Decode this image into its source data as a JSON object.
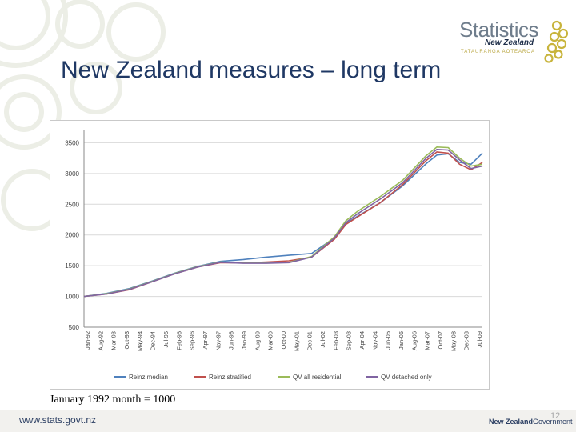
{
  "slide": {
    "title": "New Zealand measures – long term",
    "bullet_mark": "."
  },
  "logo": {
    "name": "Statistics",
    "sub": "New Zealand",
    "maori": "TATAURANGA AOTEAROA"
  },
  "footer": {
    "url": "www.stats.govt.nz",
    "gov_part1": "New Zealand",
    "gov_part2": "Government",
    "page": "12"
  },
  "note": "January 1992 month = 1000",
  "colors": {
    "title": "#1f3864",
    "series": [
      "#4f81bd",
      "#c0504d",
      "#9bbb59",
      "#8064a2"
    ]
  },
  "chart_data": {
    "type": "line",
    "title": "",
    "ylim": [
      500,
      3700
    ],
    "yticks": [
      500,
      1000,
      1500,
      2000,
      2500,
      3000,
      3500
    ],
    "ytick_labels": [
      "500",
      "1000",
      "1500",
      "2000",
      "2500",
      "3000",
      "3500"
    ],
    "x_range": [
      "1992-01",
      "2009-07"
    ],
    "xtick_labels": [
      "Jan-92",
      "Aug-92",
      "Mar-93",
      "Oct-93",
      "May-94",
      "Dec-94",
      "Jul-95",
      "Feb-96",
      "Sep-96",
      "Apr-97",
      "Nov-97",
      "Jun-98",
      "Jan-99",
      "Aug-99",
      "Mar-00",
      "Oct-00",
      "May-01",
      "Dec-01",
      "Jul-02",
      "Feb-03",
      "Sep-03",
      "Apr-04",
      "Nov-04",
      "Jun-05",
      "Jan-06",
      "Aug-06",
      "Mar-07",
      "Oct-07",
      "May-08",
      "Dec-08",
      "Jul-09"
    ],
    "grid": true,
    "legend_position": "bottom",
    "series": [
      {
        "name": "Reinz median",
        "x": [
          "1992-01",
          "1993-01",
          "1994-01",
          "1995-01",
          "1996-01",
          "1997-01",
          "1998-01",
          "1999-01",
          "2000-01",
          "2001-01",
          "2002-01",
          "2003-01",
          "2003-07",
          "2004-01",
          "2005-01",
          "2006-01",
          "2007-01",
          "2007-07",
          "2008-01",
          "2008-07",
          "2009-01",
          "2009-07"
        ],
        "y": [
          1000,
          1050,
          1130,
          1250,
          1380,
          1490,
          1570,
          1600,
          1640,
          1670,
          1700,
          1950,
          2180,
          2300,
          2520,
          2800,
          3150,
          3300,
          3320,
          3180,
          3150,
          3330
        ]
      },
      {
        "name": "Reinz stratified",
        "x": [
          "1992-01",
          "1993-01",
          "1994-01",
          "1995-01",
          "1996-01",
          "1997-01",
          "1998-01",
          "1999-01",
          "2000-01",
          "2001-01",
          "2002-01",
          "2003-01",
          "2003-07",
          "2004-01",
          "2005-01",
          "2006-01",
          "2007-01",
          "2007-07",
          "2008-01",
          "2008-07",
          "2009-01",
          "2009-07"
        ],
        "y": [
          1000,
          1040,
          1110,
          1240,
          1370,
          1480,
          1550,
          1545,
          1560,
          1580,
          1640,
          1930,
          2170,
          2290,
          2520,
          2820,
          3200,
          3350,
          3330,
          3150,
          3060,
          3180
        ]
      },
      {
        "name": "QV all residential",
        "x": [
          "1992-01",
          "1993-01",
          "1994-01",
          "1995-01",
          "1996-01",
          "1997-01",
          "1998-01",
          "1999-01",
          "2000-01",
          "2001-01",
          "2002-01",
          "2003-01",
          "2003-07",
          "2004-01",
          "2005-01",
          "2006-01",
          "2007-01",
          "2007-07",
          "2008-01",
          "2008-07",
          "2009-01",
          "2009-07"
        ],
        "y": [
          1000,
          1045,
          1120,
          1245,
          1375,
          1485,
          1560,
          1545,
          1545,
          1555,
          1650,
          1970,
          2230,
          2380,
          2620,
          2890,
          3280,
          3430,
          3420,
          3250,
          3120,
          3150
        ]
      },
      {
        "name": "QV detached only",
        "x": [
          "1992-01",
          "1993-01",
          "1994-01",
          "1995-01",
          "1996-01",
          "1997-01",
          "1998-01",
          "1999-01",
          "2000-01",
          "2001-01",
          "2002-01",
          "2003-01",
          "2003-07",
          "2004-01",
          "2005-01",
          "2006-01",
          "2007-01",
          "2007-07",
          "2008-01",
          "2008-07",
          "2009-01",
          "2009-07"
        ],
        "y": [
          1000,
          1040,
          1115,
          1240,
          1370,
          1480,
          1555,
          1540,
          1540,
          1550,
          1640,
          1950,
          2200,
          2340,
          2580,
          2850,
          3240,
          3390,
          3380,
          3220,
          3080,
          3120
        ]
      }
    ]
  }
}
